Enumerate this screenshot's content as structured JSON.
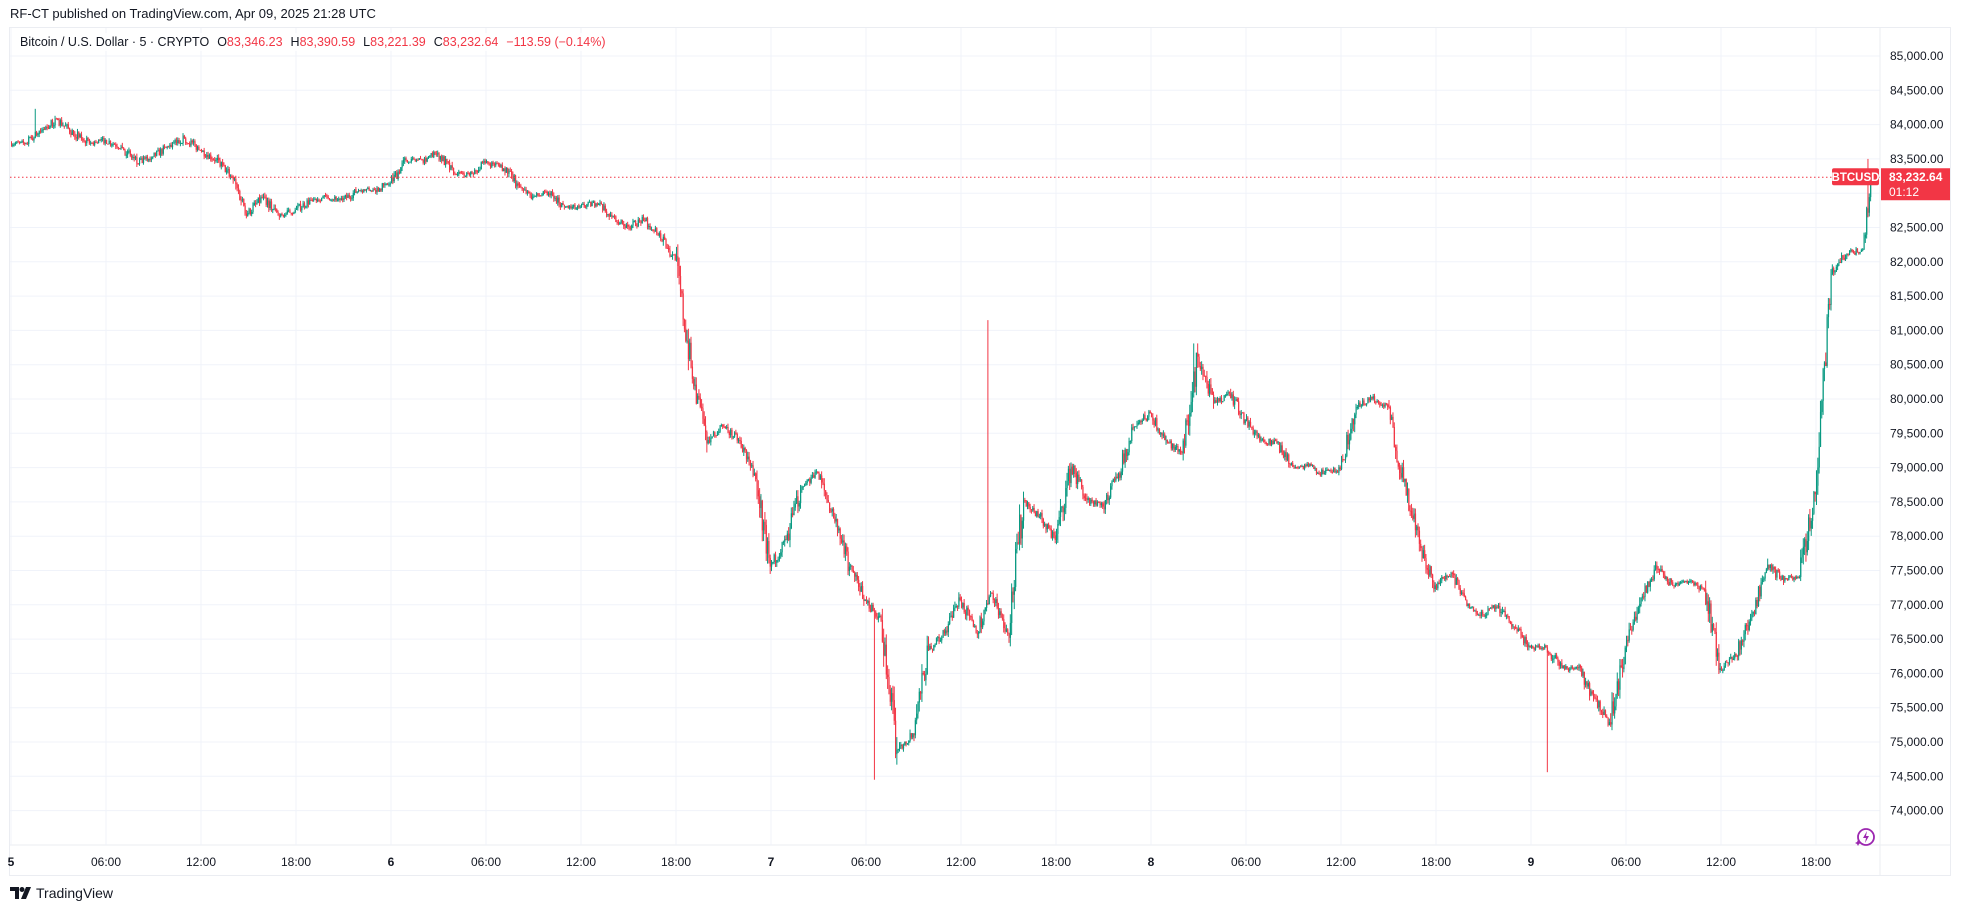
{
  "header": {
    "published": "RF-CT published on TradingView.com, Apr 09, 2025 21:28 UTC"
  },
  "legend": {
    "symbol": "Bitcoin / U.S. Dollar · 5 · CRYPTO",
    "open_label": "O",
    "open": "83,346.23",
    "high_label": "H",
    "high": "83,390.59",
    "low_label": "L",
    "low": "83,221.39",
    "close_label": "C",
    "close": "83,232.64",
    "change": "−113.59 (−0.14%)"
  },
  "last_price": {
    "ticker": "BTCUSD",
    "price": "83,232.64",
    "countdown": "01:12",
    "value": 83232.64
  },
  "colors": {
    "up": "#089981",
    "down": "#f23645",
    "grid": "#f0f3fa",
    "last_price": "#f23645",
    "icon": "#9c27b0"
  },
  "footer": {
    "brand": "TradingView"
  },
  "icons": {
    "bottom_right": "lightning-sparkle-icon",
    "logo": "tradingview-logo-icon"
  },
  "chart_data": {
    "type": "candlestick",
    "interval_minutes": 5,
    "start_time": "2025-04-05 00:00",
    "end_time": "2025-04-09 21:25",
    "ylim": [
      73600,
      85700
    ],
    "grid": true,
    "y_ticks": [
      74000,
      74500,
      75000,
      75500,
      76000,
      76500,
      77000,
      77500,
      78000,
      78500,
      79000,
      79500,
      80000,
      80500,
      81000,
      81500,
      82000,
      82500,
      83500,
      84000,
      84500,
      85000
    ],
    "y_tick_labels": [
      "74,000.00",
      "74,500.00",
      "75,000.00",
      "75,500.00",
      "76,000.00",
      "76,500.00",
      "77,000.00",
      "77,500.00",
      "78,000.00",
      "78,500.00",
      "79,000.00",
      "79,500.00",
      "80,000.00",
      "80,500.00",
      "81,000.00",
      "81,500.00",
      "82,000.00",
      "82,500.00",
      "83,500.00",
      "84,000.00",
      "84,500.00",
      "85,000.00"
    ],
    "x_ticks": [
      {
        "label": "5",
        "time": "2025-04-05 00:00"
      },
      {
        "label": "06:00",
        "time": "2025-04-05 06:00"
      },
      {
        "label": "12:00",
        "time": "2025-04-05 12:00"
      },
      {
        "label": "18:00",
        "time": "2025-04-05 18:00"
      },
      {
        "label": "6",
        "time": "2025-04-06 00:00"
      },
      {
        "label": "06:00",
        "time": "2025-04-06 06:00"
      },
      {
        "label": "12:00",
        "time": "2025-04-06 12:00"
      },
      {
        "label": "18:00",
        "time": "2025-04-06 18:00"
      },
      {
        "label": "7",
        "time": "2025-04-07 00:00"
      },
      {
        "label": "06:00",
        "time": "2025-04-07 06:00"
      },
      {
        "label": "12:00",
        "time": "2025-04-07 12:00"
      },
      {
        "label": "18:00",
        "time": "2025-04-07 18:00"
      },
      {
        "label": "8",
        "time": "2025-04-08 00:00"
      },
      {
        "label": "06:00",
        "time": "2025-04-08 06:00"
      },
      {
        "label": "12:00",
        "time": "2025-04-08 12:00"
      },
      {
        "label": "18:00",
        "time": "2025-04-08 18:00"
      },
      {
        "label": "9",
        "time": "2025-04-09 00:00"
      },
      {
        "label": "06:00",
        "time": "2025-04-09 06:00"
      },
      {
        "label": "12:00",
        "time": "2025-04-09 12:00"
      },
      {
        "label": "18:00",
        "time": "2025-04-09 18:00"
      }
    ],
    "hourly_closes_approx": [
      83727,
      83922,
      84067,
      83873,
      83727,
      83776,
      83679,
      83436,
      83533,
      83679,
      83800,
      83630,
      83484,
      83241,
      82707,
      82950,
      82658,
      82756,
      82901,
      82950,
      82901,
      83047,
      83047,
      83144,
      83484,
      83484,
      83582,
      83290,
      83266,
      83436,
      83411,
      83144,
      82950,
      82999,
      82804,
      82804,
      82853,
      82658,
      82513,
      82610,
      82416,
      82027,
      80472,
      79354,
      79597,
      79402,
      78917,
      77556,
      77945,
      78722,
      78917,
      78285,
      77556,
      77070,
      76778,
      74883,
      75126,
      76341,
      76584,
      77070,
      76584,
      77167,
      76584,
      78528,
      78285,
      77945,
      79014,
      78528,
      78431,
      78917,
      79597,
      79791,
      79402,
      79208,
      80617,
      79937,
      80082,
      79694,
      79402,
      79354,
      79014,
      79014,
      78917,
      78976,
      79883,
      80004,
      79883,
      78795,
      77888,
      77284,
      77465,
      76982,
      76861,
      76982,
      76680,
      76377,
      76377,
      76075,
      76075,
      75652,
      75290,
      76377,
      77103,
      77525,
      77284,
      77344,
      77224,
      76075,
      76256,
      76861,
      77586,
      77344,
      77405,
      78613,
      81817,
      82119,
      82179,
      83267
    ],
    "extremes_approx": [
      {
        "time": "2025-04-05 01:30",
        "high": 84230
      },
      {
        "time": "2025-04-07 06:30",
        "low": 74450
      },
      {
        "time": "2025-04-07 13:40",
        "high": 81150
      },
      {
        "time": "2025-04-08 02:40",
        "high": 80810
      },
      {
        "time": "2025-04-09 01:00",
        "low": 74560
      },
      {
        "time": "2025-04-09 21:15",
        "high": 83500
      }
    ]
  }
}
